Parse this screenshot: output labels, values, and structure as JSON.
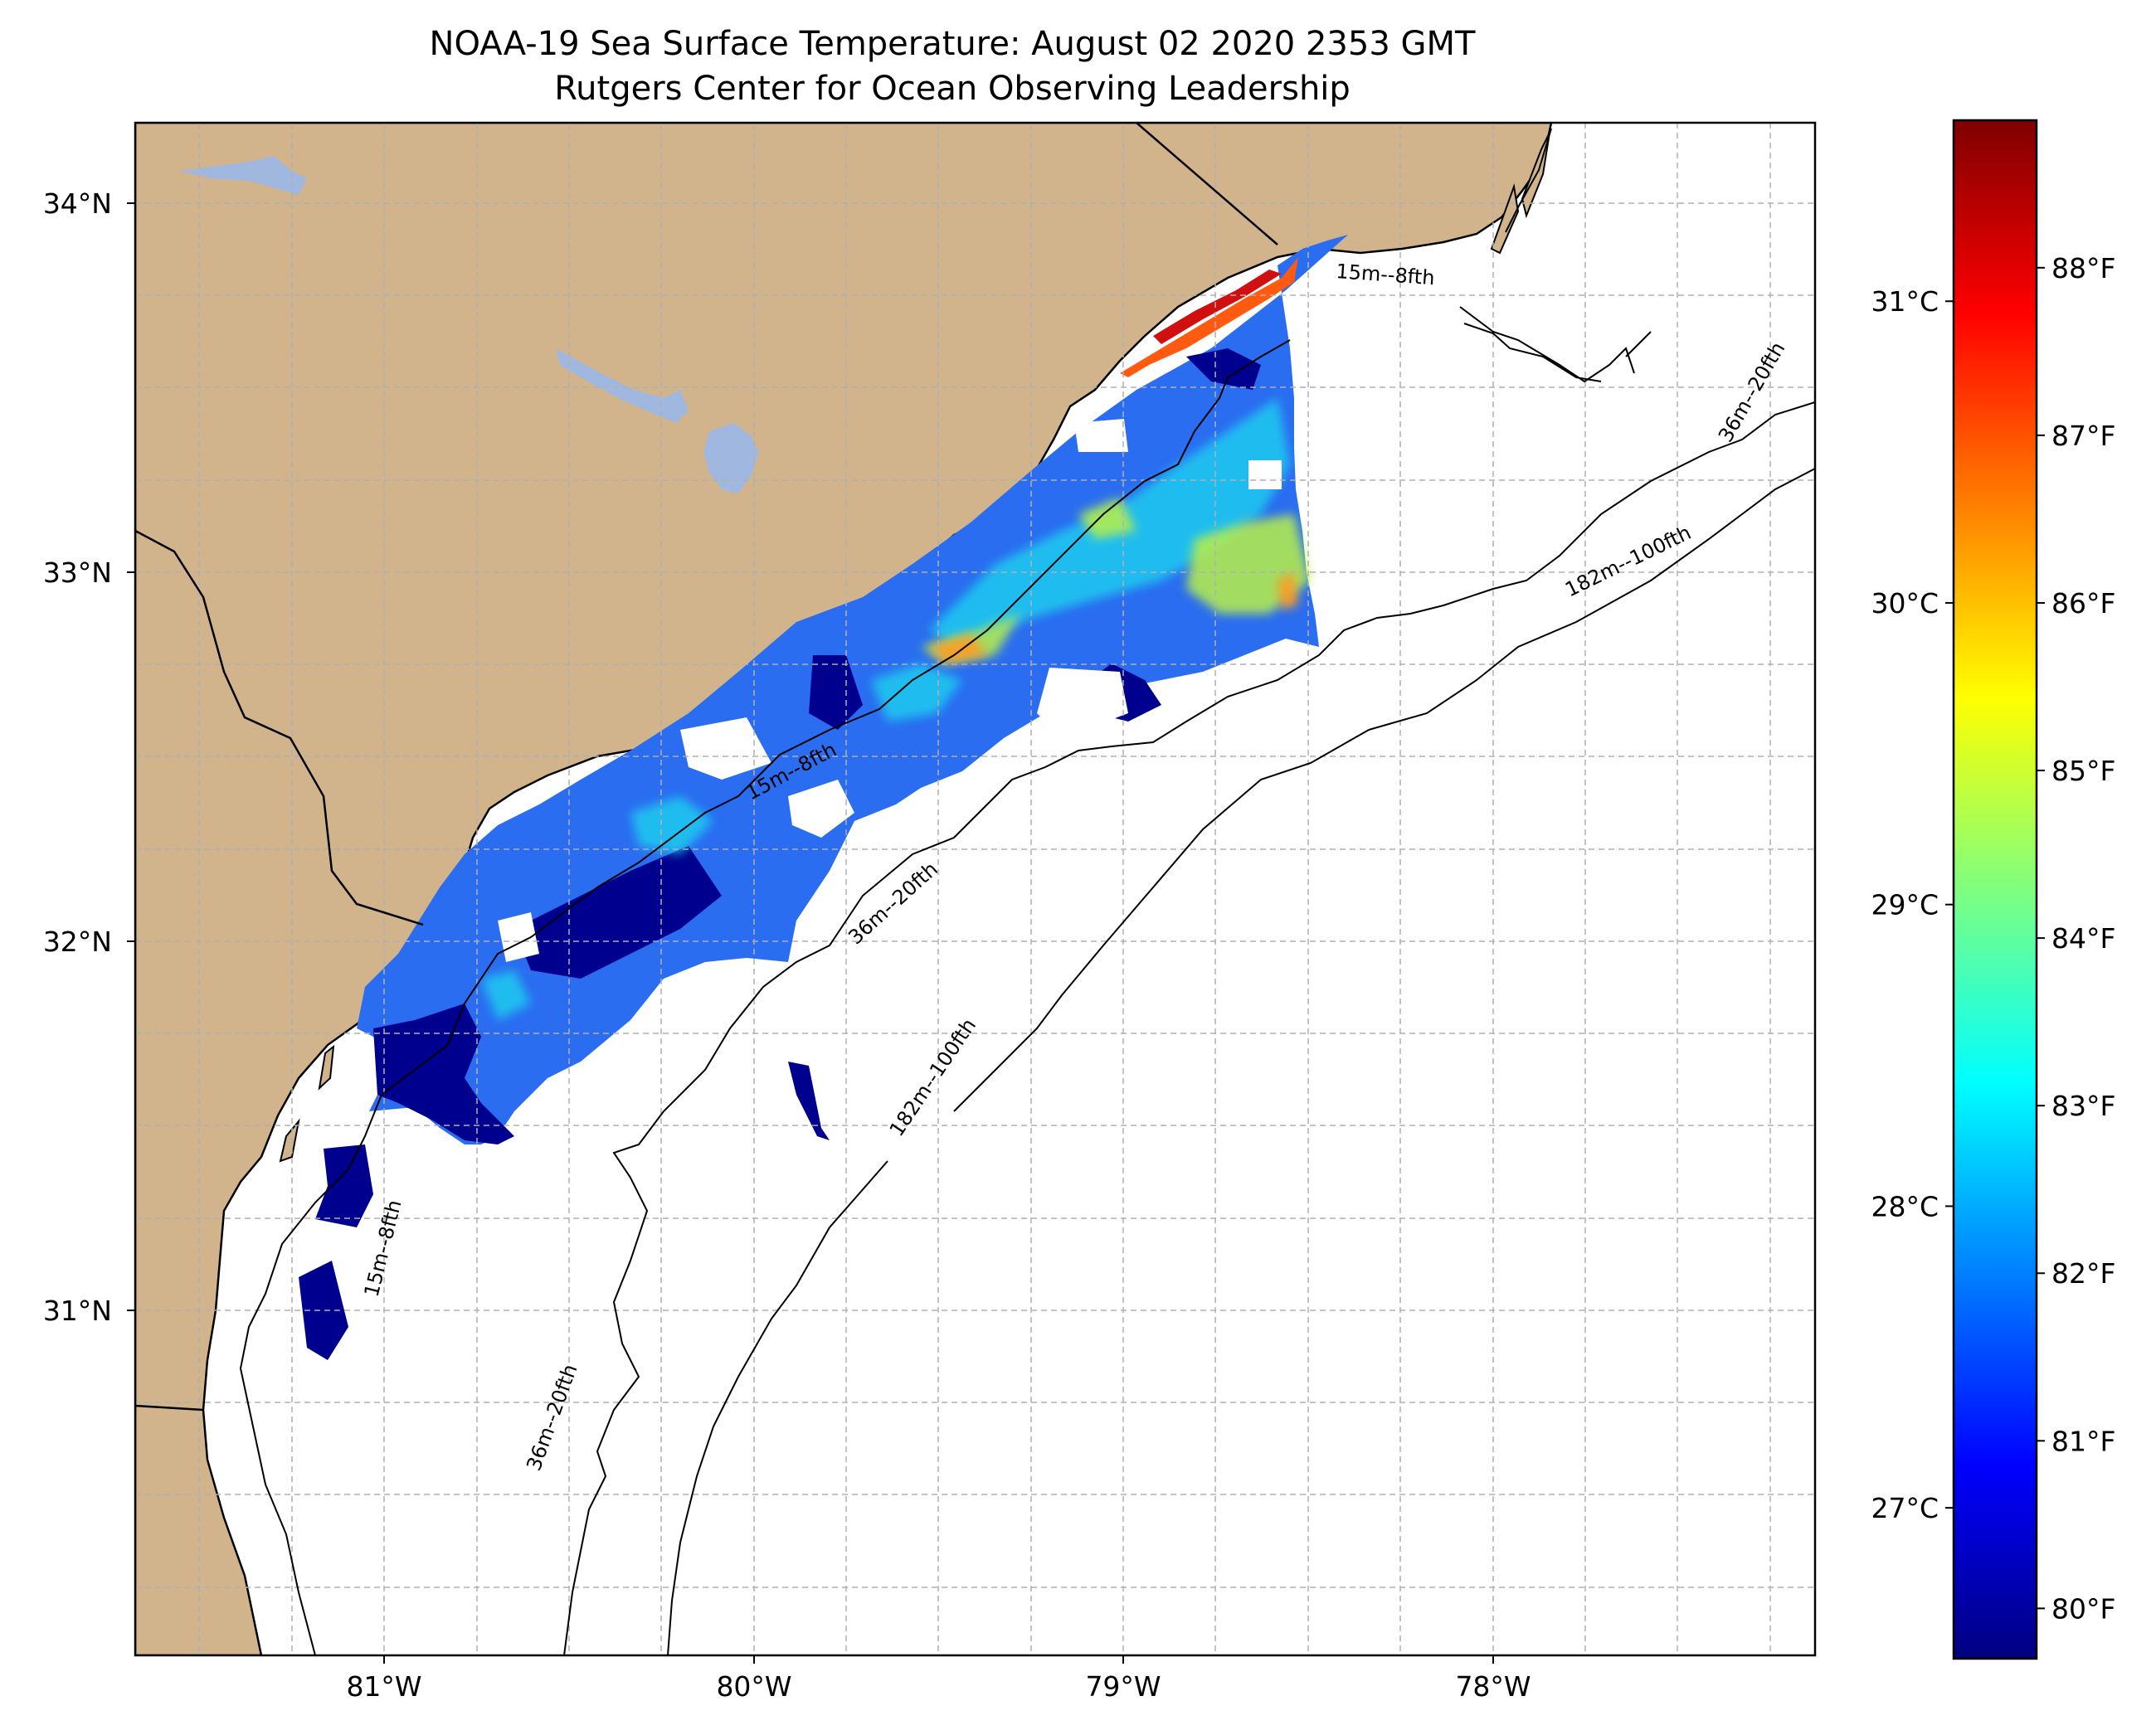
{
  "title": {
    "line1": "NOAA-19 Sea Surface Temperature: August 02 2020 2353 GMT",
    "line2": "Rutgers Center for Ocean Observing Leadership"
  },
  "map": {
    "lon_range": [
      -81.67,
      -77.1
    ],
    "lat_range": [
      30.18,
      34.33
    ],
    "land_color": "#d2b48c",
    "lake_color": "#a0b8e0",
    "x_ticks": [
      {
        "value": -81,
        "label": "81°W"
      },
      {
        "value": -80,
        "label": "80°W"
      },
      {
        "value": -79,
        "label": "79°W"
      },
      {
        "value": -78,
        "label": "78°W"
      }
    ],
    "y_ticks": [
      {
        "value": 34,
        "label": "34°N"
      },
      {
        "value": 33,
        "label": "33°N"
      },
      {
        "value": 32,
        "label": "32°N"
      },
      {
        "value": 31,
        "label": "31°N"
      }
    ],
    "contour_labels": [
      {
        "text": "15m--8fth"
      },
      {
        "text": "15m--8fth"
      },
      {
        "text": "15m--8fth"
      },
      {
        "text": "36m--20fth"
      },
      {
        "text": "36m--20fth"
      },
      {
        "text": "36m--20fth"
      },
      {
        "text": "182m--100fth"
      },
      {
        "text": "182m--100fth"
      }
    ]
  },
  "colorbar": {
    "colormap": "jet",
    "range_celsius": [
      26.5,
      31.6
    ],
    "colors": [
      "#00007f",
      "#0000ff",
      "#007fff",
      "#00ffff",
      "#7fff7f",
      "#ffff00",
      "#ff7f00",
      "#ff0000",
      "#7f0000"
    ],
    "celsius_ticks": [
      {
        "value": 27,
        "label": "27°C"
      },
      {
        "value": 28,
        "label": "28°C"
      },
      {
        "value": 29,
        "label": "29°C"
      },
      {
        "value": 30,
        "label": "30°C"
      },
      {
        "value": 31,
        "label": "31°C"
      }
    ],
    "fahrenheit_ticks": [
      {
        "value": 80,
        "label": "80°F"
      },
      {
        "value": 81,
        "label": "81°F"
      },
      {
        "value": 82,
        "label": "82°F"
      },
      {
        "value": 83,
        "label": "83°F"
      },
      {
        "value": 84,
        "label": "84°F"
      },
      {
        "value": 85,
        "label": "85°F"
      },
      {
        "value": 86,
        "label": "86°F"
      },
      {
        "value": 87,
        "label": "87°F"
      },
      {
        "value": 88,
        "label": "88°F"
      }
    ]
  }
}
